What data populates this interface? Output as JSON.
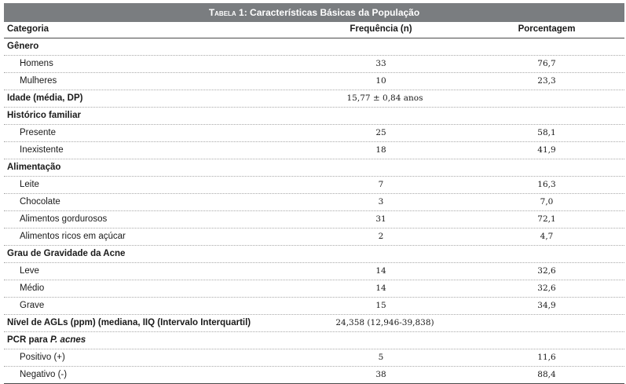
{
  "table": {
    "title_prefix": "Tabela 1:",
    "title_text": " Características Básicas da População",
    "headers": [
      "Categoria",
      "Frequência (n)",
      "Porcentagem"
    ],
    "rows": [
      {
        "type": "group",
        "label": "Gênero"
      },
      {
        "type": "item",
        "label": "Homens",
        "freq": "33",
        "pct": "76,7"
      },
      {
        "type": "item",
        "label": "Mulheres",
        "freq": "10",
        "pct": "23,3"
      },
      {
        "type": "groupvalue",
        "label": "Idade (média, DP)",
        "freq": "15,77 ± 0,84 anos"
      },
      {
        "type": "group",
        "label": "Histórico familiar"
      },
      {
        "type": "item",
        "label": "Presente",
        "freq": "25",
        "pct": "58,1"
      },
      {
        "type": "item",
        "label": "Inexistente",
        "freq": "18",
        "pct": "41,9"
      },
      {
        "type": "group",
        "label": "Alimentação"
      },
      {
        "type": "item",
        "label": "Leite",
        "freq": "7",
        "pct": "16,3"
      },
      {
        "type": "item",
        "label": "Chocolate",
        "freq": "3",
        "pct": "7,0"
      },
      {
        "type": "item",
        "label": "Alimentos gordurosos",
        "freq": "31",
        "pct": "72,1"
      },
      {
        "type": "item",
        "label": "Alimentos ricos em açúcar",
        "freq": "2",
        "pct": "4,7"
      },
      {
        "type": "group",
        "label": "Grau de Gravidade da Acne"
      },
      {
        "type": "item",
        "label": "Leve",
        "freq": "14",
        "pct": "32,6"
      },
      {
        "type": "item",
        "label": "Médio",
        "freq": "14",
        "pct": "32,6"
      },
      {
        "type": "item",
        "label": "Grave",
        "freq": "15",
        "pct": "34,9"
      },
      {
        "type": "groupvalue",
        "label": "Nível de AGLs (ppm) (mediana, IIQ (Intervalo Interquartil)",
        "freq": "24,358 (12,946-39,838)"
      },
      {
        "type": "group",
        "label": "PCR para ",
        "label_italic": "P. acnes"
      },
      {
        "type": "item",
        "label": "Positivo (+)",
        "freq": "5",
        "pct": "11,6"
      },
      {
        "type": "item",
        "label": "Negativo (-)",
        "freq": "38",
        "pct": "88,4"
      }
    ]
  }
}
